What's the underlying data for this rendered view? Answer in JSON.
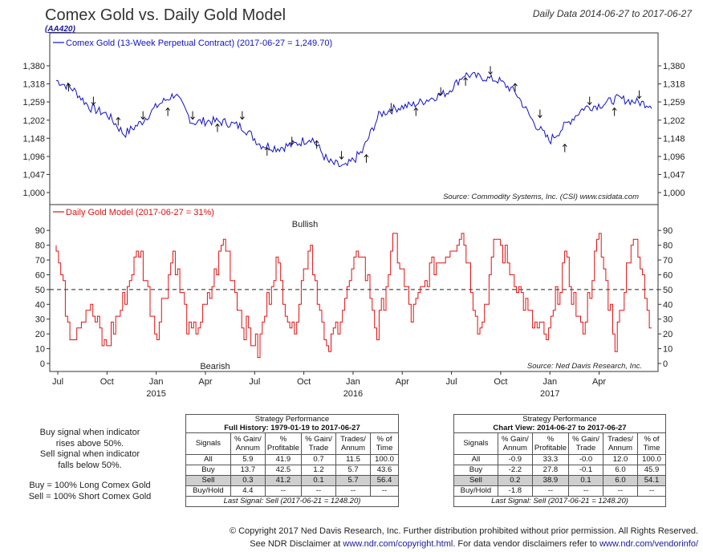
{
  "header": {
    "title": "Comex Gold vs. Daily Gold Model",
    "code": "(AA420)",
    "date_range": "Daily Data 2014-06-27 to 2017-06-27"
  },
  "chart_data": [
    {
      "type": "line",
      "legend": "Comex Gold (13-Week Perpetual Contract) (2017-06-27 = 1,249.70)",
      "source": "Source:  Commodity Systems, Inc. (CSI) www.csidata.com",
      "y_ticks": [
        "1,380",
        "1,318",
        "1,259",
        "1,202",
        "1,148",
        "1,096",
        "1,047",
        "1,000"
      ],
      "y_log": true,
      "ylim": [
        1000,
        1420
      ],
      "x": [
        "2014-07",
        "2014-08",
        "2014-09",
        "2014-10",
        "2014-11",
        "2014-12",
        "2015-01",
        "2015-02",
        "2015-03",
        "2015-04",
        "2015-05",
        "2015-06",
        "2015-07",
        "2015-08",
        "2015-09",
        "2015-10",
        "2015-11",
        "2015-12",
        "2016-01",
        "2016-02",
        "2016-03",
        "2016-04",
        "2016-05",
        "2016-06",
        "2016-07",
        "2016-08",
        "2016-09",
        "2016-10",
        "2016-11",
        "2016-12",
        "2017-01",
        "2017-02",
        "2017-03",
        "2017-04",
        "2017-05",
        "2017-06"
      ],
      "values": [
        1330,
        1300,
        1240,
        1220,
        1160,
        1195,
        1250,
        1285,
        1195,
        1200,
        1195,
        1180,
        1130,
        1120,
        1130,
        1150,
        1080,
        1065,
        1110,
        1220,
        1240,
        1250,
        1270,
        1290,
        1350,
        1340,
        1330,
        1290,
        1200,
        1140,
        1190,
        1240,
        1250,
        1270,
        1260,
        1250
      ]
    },
    {
      "type": "line",
      "legend": "Daily Gold Model (2017-06-27 = 31%)",
      "source": "Source:  Ned Davis Research, Inc.",
      "annotation_top": "Bullish",
      "annotation_bottom": "Bearish",
      "y_ticks": [
        "90",
        "80",
        "70",
        "60",
        "50",
        "40",
        "30",
        "20",
        "10",
        "0"
      ],
      "ylim": [
        0,
        95
      ],
      "threshold": 50,
      "values": [
        85,
        20,
        40,
        10,
        40,
        80,
        20,
        75,
        15,
        40,
        85,
        30,
        10,
        70,
        20,
        85,
        5,
        40,
        80,
        20,
        85,
        30,
        60,
        75,
        90,
        20,
        85,
        60,
        30,
        15,
        70,
        20,
        85,
        15,
        90,
        31
      ]
    }
  ],
  "x_axis": {
    "months": [
      "Jul",
      "Oct",
      "Jan",
      "Apr",
      "Jul",
      "Oct",
      "Jan",
      "Apr",
      "Jul",
      "Oct",
      "Jan",
      "Apr"
    ],
    "years": [
      "2015",
      "2016",
      "2017"
    ]
  },
  "notes": {
    "l1": "Buy signal when indicator",
    "l2": "rises above 50%.",
    "l3": "Sell signal when indicator",
    "l4": "falls below 50%.",
    "l5": "Buy = 100% Long Comex Gold",
    "l6": "Sell = 100% Short Comex Gold"
  },
  "full": {
    "title": "Strategy Performance",
    "subtitle": "Full History: 1979-01-19 to 2017-06-27",
    "headers": [
      "Signals",
      "% Gain/ Annum",
      "% Profitable",
      "% Gain/ Trade",
      "Trades/ Annum",
      "% of Time"
    ],
    "rows": [
      [
        "All",
        "5.9",
        "41.9",
        "0.7",
        "11.5",
        "100.0"
      ],
      [
        "Buy",
        "13.7",
        "42.5",
        "1.2",
        "5.7",
        "43.6"
      ],
      [
        "Sell",
        "0.3",
        "41.2",
        "0.1",
        "5.7",
        "56.4"
      ],
      [
        "Buy/Hold",
        "4.4",
        "--",
        "--",
        "--",
        "--"
      ]
    ],
    "last": "Last Signal: Sell (2017-06-21 = 1248.20)"
  },
  "view": {
    "title": "Strategy Performance",
    "subtitle": "Chart View: 2014-06-27 to 2017-06-27",
    "headers": [
      "Signals",
      "% Gain/ Annum",
      "% Profitable",
      "% Gain/ Trade",
      "Trades/ Annum",
      "% of Time"
    ],
    "rows": [
      [
        "All",
        "-0.9",
        "33.3",
        "-0.0",
        "12.0",
        "100.0"
      ],
      [
        "Buy",
        "-2.2",
        "27.8",
        "-0.1",
        "6.0",
        "45.9"
      ],
      [
        "Sell",
        "0.2",
        "38.9",
        "0.1",
        "6.0",
        "54.1"
      ],
      [
        "Buy/Hold",
        "-1.8",
        "--",
        "--",
        "--",
        "--"
      ]
    ],
    "last": "Last Signal: Sell (2017-06-21 = 1248.20)"
  },
  "footer": {
    "line1": "© Copyright 2017 Ned Davis Research, Inc. Further distribution prohibited without prior permission. All Rights Reserved.",
    "line2a": "See NDR Disclaimer at ",
    "link1": "www.ndr.com/copyright.html",
    "line2b": ". For data vendor disclaimers refer to ",
    "link2": "www.ndr.com/vendorinfo/"
  },
  "colors": {
    "gold": "#1010cc",
    "model": "#e01010",
    "grid": "#333333"
  }
}
